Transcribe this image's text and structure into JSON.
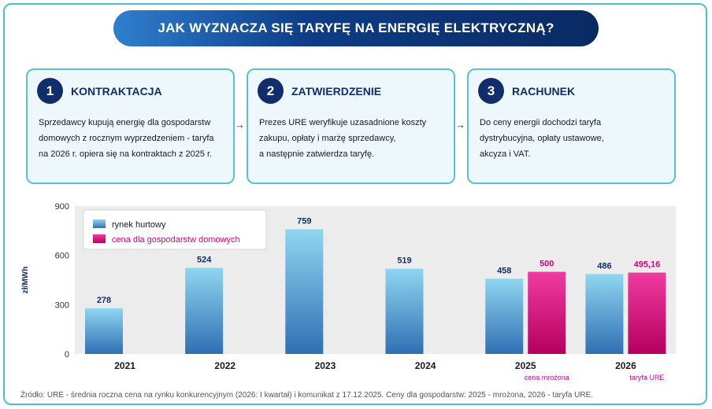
{
  "title": "JAK WYZNACZA SIĘ TARYFĘ NA ENERGIĘ ELEKTRYCZNĄ?",
  "steps": [
    {
      "num": "1",
      "title": "KONTRAKTACJA",
      "lines": [
        "Sprzedawcy kupują energię dla gospodarstw",
        "domowych z rocznym wyprzedzeniem - taryfa",
        "na 2026 r. opiera się na kontraktach z 2025 r."
      ]
    },
    {
      "num": "2",
      "title": "ZATWIERDZENIE",
      "lines": [
        "Prezes URE weryfikuje uzasadnione koszty",
        "zakupu, opłaty i marżę sprzedawcy,",
        "a następnie zatwierdza taryfę."
      ]
    },
    {
      "num": "3",
      "title": "RACHUNEK",
      "lines": [
        "Do ceny energii dochodzi taryfa",
        "dystrybucyjna, opłaty ustawowe,",
        "akcyza i VAT."
      ]
    }
  ],
  "arrow_glyph": "→",
  "source": "Źródło: URE - średnia roczna cena na rynku konkurencyjnym (2026: I kwartał) i komunikat z 17.12.2025. Ceny dla gospodarstw: 2025 - mrożona, 2026 - taryfa URE.",
  "colors": {
    "title_dark": "#0f2e6b",
    "wholesale_top": "#8fd6f0",
    "wholesale_bottom": "#2f6fb3",
    "household_top": "#f03ba0",
    "household_bottom": "#b5005f",
    "household_text": "#e0007a",
    "plot_bg": "#ececec"
  },
  "chart_data": {
    "type": "bar",
    "ylabel": "zł/MWh",
    "ylim": [
      0,
      900
    ],
    "yticks": [
      "0",
      "300",
      "600",
      "900"
    ],
    "categories": [
      "2021",
      "2022",
      "2023",
      "2024",
      "2025",
      "2026"
    ],
    "series": [
      {
        "name": "rynek hurtowy",
        "values": [
          278,
          524,
          759,
          519,
          458,
          486
        ],
        "labels": [
          "278",
          "524",
          "759",
          "519",
          "458",
          "486"
        ]
      },
      {
        "name": "cena dla gospodarstw domowych",
        "values": [
          null,
          null,
          null,
          null,
          500,
          495.16
        ],
        "labels": [
          "",
          "",
          "",
          "",
          "500",
          "495,16"
        ]
      }
    ],
    "annotations": [
      "",
      "",
      "",
      "",
      "cena mrożona",
      "taryfa URE"
    ],
    "legend_position": "top-left",
    "grid": false
  }
}
